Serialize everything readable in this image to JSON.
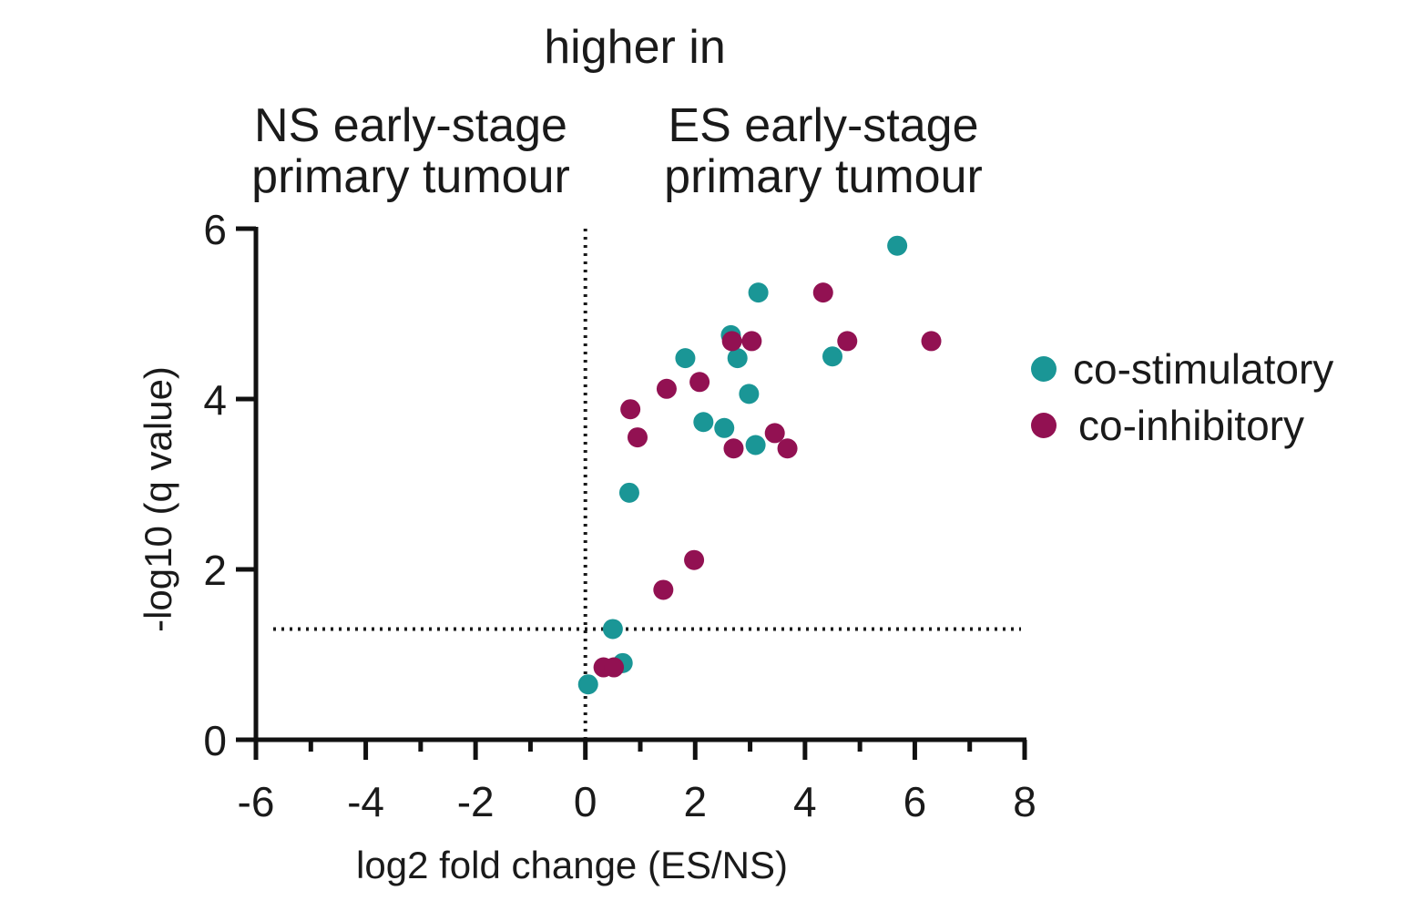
{
  "header": {
    "title": "higher in",
    "left_lines": [
      "NS early-stage",
      "primary tumour"
    ],
    "right_lines": [
      "ES early-stage",
      "primary tumour"
    ]
  },
  "chart_data": {
    "type": "scatter",
    "xlabel": "log2 fold change (ES/NS)",
    "ylabel": "-log10 (q value)",
    "xlim": [
      -6,
      8
    ],
    "ylim": [
      0,
      6
    ],
    "x_ticks": [
      "-6",
      "-4",
      "-2",
      "0",
      "2",
      "4",
      "6",
      "8"
    ],
    "y_ticks": [
      "0",
      "2",
      "4",
      "6"
    ],
    "x_tick_values": [
      -6,
      -4,
      -2,
      0,
      2,
      4,
      6,
      8
    ],
    "y_tick_values": [
      0,
      2,
      4,
      6
    ],
    "reference_lines": {
      "vertical_x": 0,
      "horizontal_y": 1.3,
      "style": "dotted"
    },
    "legend_position": "right",
    "series": [
      {
        "name": "co-stimulatory",
        "color": "#1a9696",
        "points": [
          [
            5.68,
            5.8
          ],
          [
            3.15,
            5.25
          ],
          [
            2.65,
            4.75
          ],
          [
            1.82,
            4.48
          ],
          [
            2.77,
            4.48
          ],
          [
            4.5,
            4.5
          ],
          [
            2.98,
            4.06
          ],
          [
            2.15,
            3.73
          ],
          [
            2.53,
            3.66
          ],
          [
            3.1,
            3.46
          ],
          [
            0.8,
            2.9
          ],
          [
            0.5,
            1.3
          ],
          [
            0.68,
            0.9
          ],
          [
            0.05,
            0.65
          ]
        ]
      },
      {
        "name": "co-inhibitory",
        "color": "#921152",
        "points": [
          [
            4.33,
            5.25
          ],
          [
            2.67,
            4.68
          ],
          [
            3.03,
            4.68
          ],
          [
            4.77,
            4.68
          ],
          [
            6.3,
            4.68
          ],
          [
            2.08,
            4.2
          ],
          [
            1.48,
            4.12
          ],
          [
            0.82,
            3.88
          ],
          [
            0.95,
            3.55
          ],
          [
            3.45,
            3.6
          ],
          [
            2.7,
            3.42
          ],
          [
            3.68,
            3.42
          ],
          [
            1.98,
            2.11
          ],
          [
            1.42,
            1.76
          ],
          [
            0.33,
            0.85
          ],
          [
            0.52,
            0.85
          ]
        ]
      }
    ]
  }
}
